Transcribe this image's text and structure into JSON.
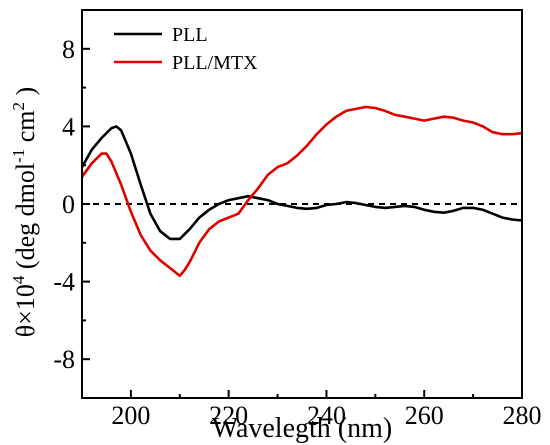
{
  "chart_data": {
    "type": "line",
    "xlabel": "Waveleg​th (nm)",
    "ylabel": {
      "prefix": "θ×10",
      "prefix_sup": "4",
      "main": " (deg dmol",
      "main_sup": "-1",
      "mid": " cm",
      "mid_sup": "2",
      "suffix": " )"
    },
    "xlim": [
      190,
      280
    ],
    "ylim": [
      -10,
      10
    ],
    "xticks": [
      200,
      220,
      240,
      260,
      280
    ],
    "yticks": [
      -8,
      -4,
      0,
      4,
      8
    ],
    "zero_line": "dashed",
    "legend_position": "top-left",
    "series": [
      {
        "name": "PLL",
        "color": "#000000",
        "x": [
          190,
          192,
          194,
          196,
          197,
          198,
          200,
          202,
          204,
          206,
          208,
          210,
          212,
          214,
          216,
          218,
          220,
          222,
          224,
          226,
          228,
          230,
          232,
          234,
          236,
          238,
          240,
          242,
          244,
          246,
          248,
          250,
          252,
          254,
          256,
          258,
          260,
          262,
          264,
          266,
          268,
          270,
          272,
          274,
          276,
          278,
          280
        ],
        "y": [
          1.9,
          2.8,
          3.4,
          3.9,
          4.0,
          3.8,
          2.6,
          1.0,
          -0.5,
          -1.4,
          -1.8,
          -1.8,
          -1.3,
          -0.7,
          -0.3,
          0.0,
          0.2,
          0.3,
          0.4,
          0.3,
          0.2,
          0.0,
          -0.1,
          -0.2,
          -0.25,
          -0.2,
          -0.05,
          0.0,
          0.1,
          0.05,
          -0.05,
          -0.15,
          -0.2,
          -0.15,
          -0.1,
          -0.15,
          -0.3,
          -0.4,
          -0.45,
          -0.35,
          -0.2,
          -0.2,
          -0.3,
          -0.5,
          -0.7,
          -0.8,
          -0.85
        ]
      },
      {
        "name": "PLL/MTX",
        "color": "#e00000",
        "x": [
          190,
          192,
          194,
          195,
          196,
          198,
          200,
          202,
          204,
          206,
          208,
          209,
          210,
          211,
          212,
          214,
          216,
          218,
          220,
          222,
          224,
          226,
          228,
          230,
          232,
          234,
          236,
          238,
          240,
          242,
          244,
          246,
          248,
          250,
          252,
          254,
          256,
          258,
          260,
          262,
          264,
          266,
          268,
          270,
          272,
          274,
          276,
          278,
          280
        ],
        "y": [
          1.4,
          2.1,
          2.6,
          2.6,
          2.2,
          1.0,
          -0.4,
          -1.6,
          -2.4,
          -2.9,
          -3.3,
          -3.5,
          -3.7,
          -3.4,
          -3.0,
          -2.0,
          -1.3,
          -0.9,
          -0.7,
          -0.5,
          0.2,
          0.8,
          1.5,
          1.9,
          2.1,
          2.5,
          3.0,
          3.6,
          4.1,
          4.5,
          4.8,
          4.9,
          5.0,
          4.95,
          4.8,
          4.6,
          4.5,
          4.4,
          4.3,
          4.4,
          4.5,
          4.45,
          4.3,
          4.2,
          4.0,
          3.7,
          3.6,
          3.6,
          3.65
        ]
      }
    ]
  }
}
